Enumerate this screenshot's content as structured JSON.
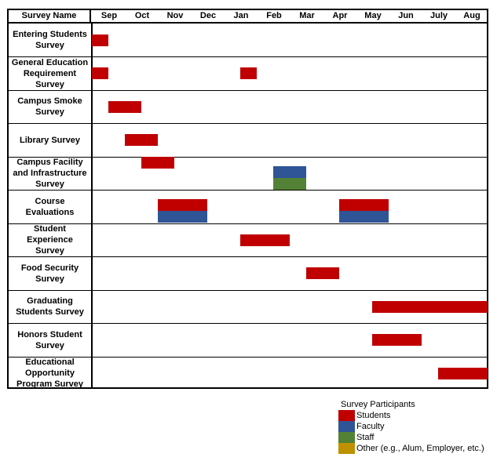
{
  "chart_data": {
    "type": "gantt",
    "title": "",
    "header": {
      "name_column": "Survey Name"
    },
    "months": [
      "Sep",
      "Oct",
      "Nov",
      "Dec",
      "Jan",
      "Feb",
      "Mar",
      "Apr",
      "May",
      "Jun",
      "July",
      "Aug"
    ],
    "time_unit_note": "start/end are in month units from start of Sep (0 = start of Sep, 12 = end of Aug)",
    "participants": {
      "Students": "#c00000",
      "Faculty": "#2f5597",
      "Staff": "#538135",
      "Other": "#bf9000"
    },
    "rows": [
      {
        "name": "Entering Students Survey",
        "name_lines": [
          "Entering Students",
          "Survey"
        ],
        "bars": [
          {
            "start": 0,
            "end": 0.5,
            "participants": [
              "Students"
            ]
          }
        ]
      },
      {
        "name": "General Education Requirement Survey",
        "name_lines": [
          "General Education",
          "Requirement",
          "Survey"
        ],
        "bars": [
          {
            "start": 0,
            "end": 0.5,
            "participants": [
              "Students"
            ]
          },
          {
            "start": 4.5,
            "end": 5,
            "participants": [
              "Students"
            ]
          }
        ]
      },
      {
        "name": "Campus Smoke Survey",
        "name_lines": [
          "Campus Smoke",
          "Survey"
        ],
        "bars": [
          {
            "start": 0.5,
            "end": 1.5,
            "participants": [
              "Students"
            ]
          }
        ]
      },
      {
        "name": "Library Survey",
        "name_lines": [
          "Library Survey"
        ],
        "bars": [
          {
            "start": 1,
            "end": 2,
            "participants": [
              "Students"
            ]
          }
        ]
      },
      {
        "name": "Campus Facility and Infrastructure Survey",
        "name_lines": [
          "Campus Facility",
          "and Infrastructure",
          "Survey"
        ],
        "bars": [
          {
            "start": 1.5,
            "end": 2.5,
            "participants": [
              "Students"
            ],
            "valign": "top"
          },
          {
            "start": 5.5,
            "end": 6.5,
            "participants": [
              "Faculty",
              "Staff"
            ],
            "valign": "bottom"
          }
        ]
      },
      {
        "name": "Course Evaluations",
        "name_lines": [
          "Course",
          "Evaluations"
        ],
        "bars": [
          {
            "start": 2,
            "end": 3.5,
            "participants": [
              "Students",
              "Faculty"
            ]
          },
          {
            "start": 7.5,
            "end": 9,
            "participants": [
              "Students",
              "Faculty"
            ]
          }
        ]
      },
      {
        "name": "Student Experience Survey",
        "name_lines": [
          "Student",
          "Experience",
          "Survey"
        ],
        "bars": [
          {
            "start": 4.5,
            "end": 6,
            "participants": [
              "Students"
            ]
          }
        ]
      },
      {
        "name": "Food Security Survey",
        "name_lines": [
          "Food Security",
          "Survey"
        ],
        "bars": [
          {
            "start": 6.5,
            "end": 7.5,
            "participants": [
              "Students"
            ]
          }
        ]
      },
      {
        "name": "Graduating Students Survey",
        "name_lines": [
          "Graduating",
          "Students Survey"
        ],
        "bars": [
          {
            "start": 8.5,
            "end": 12,
            "participants": [
              "Students"
            ]
          }
        ]
      },
      {
        "name": "Honors Student Survey",
        "name_lines": [
          "Honors Student",
          "Survey"
        ],
        "bars": [
          {
            "start": 8.5,
            "end": 10,
            "participants": [
              "Students"
            ]
          }
        ]
      },
      {
        "name": "Educational Opportunity Program Survey",
        "name_lines": [
          "Educational",
          "Opportunity",
          "Program Survey"
        ],
        "bars": [
          {
            "start": 10.5,
            "end": 12,
            "participants": [
              "Students"
            ]
          }
        ]
      }
    ],
    "legend": {
      "title": "Survey Participants",
      "position": "bottom-right",
      "items": [
        {
          "label": "Students",
          "color": "#c00000"
        },
        {
          "label": "Faculty",
          "color": "#2f5597"
        },
        {
          "label": "Staff",
          "color": "#538135"
        },
        {
          "label": "Other (e.g., Alum, Employer, etc.)",
          "color": "#bf9000"
        }
      ]
    }
  }
}
